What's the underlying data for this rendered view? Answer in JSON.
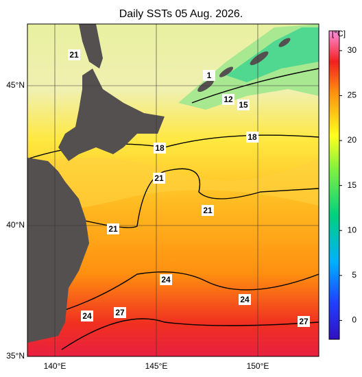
{
  "title": "Daily SSTs 05 Aug. 2026.",
  "map": {
    "lat_labels": [
      "45°N",
      "40°N",
      "35°N"
    ],
    "lon_labels": [
      "140°E",
      "145°E",
      "150°E"
    ],
    "contour_labels": [
      "21",
      "1",
      "12",
      "15",
      "18",
      "18",
      "21",
      "21",
      "21",
      "24",
      "24",
      "24",
      "27",
      "27"
    ]
  },
  "colorbar": {
    "unit": "[°C]",
    "lim": [
      -2.1,
      32.2
    ],
    "ticks": [
      0,
      5,
      10,
      15,
      20,
      25,
      30
    ]
  }
}
